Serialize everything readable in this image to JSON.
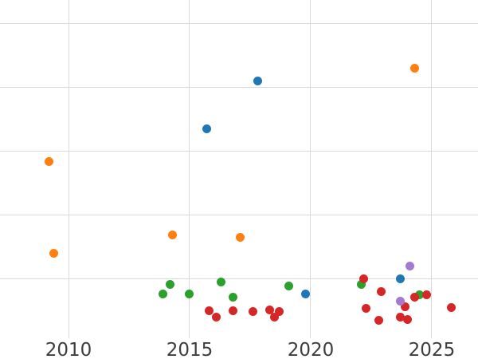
{
  "colors": {
    "background": "#ffffff",
    "gridline": "#d9d9d9",
    "tick_label": "#3d3d3d"
  },
  "chart_data": {
    "type": "scatter",
    "title": "",
    "xlabel": "",
    "ylabel": "",
    "grid": true,
    "legend": "none",
    "x_tick_labels": [
      "2010",
      "2015",
      "2020",
      "2025"
    ],
    "x_tick_years": [
      2010,
      2015,
      2020,
      2025
    ],
    "x_range": [
      2007.17,
      2026.91
    ],
    "y_range": [
      0,
      5.36
    ],
    "y_gridline_levels": [
      1,
      2,
      3,
      4,
      5
    ],
    "y_tick_labels_visible": false,
    "series": [
      {
        "name": "blue",
        "color": "#1f77b4",
        "points": [
          [
            2015.7,
            3.35
          ],
          [
            2017.8,
            4.1
          ],
          [
            2019.8,
            0.76
          ],
          [
            2023.7,
            0.99
          ]
        ]
      },
      {
        "name": "orange",
        "color": "#ff7f0e",
        "points": [
          [
            2009.2,
            2.83
          ],
          [
            2009.4,
            1.4
          ],
          [
            2014.3,
            1.68
          ],
          [
            2017.1,
            1.64
          ],
          [
            2024.3,
            4.29
          ]
        ]
      },
      {
        "name": "green",
        "color": "#2ca02c",
        "points": [
          [
            2013.9,
            0.76
          ],
          [
            2014.2,
            0.91
          ],
          [
            2015.0,
            0.76
          ],
          [
            2016.3,
            0.94
          ],
          [
            2016.8,
            0.71
          ],
          [
            2019.1,
            0.88
          ],
          [
            2022.1,
            0.91
          ],
          [
            2024.5,
            0.75
          ]
        ]
      },
      {
        "name": "red",
        "color": "#d62728",
        "points": [
          [
            2015.8,
            0.49
          ],
          [
            2016.1,
            0.39
          ],
          [
            2016.8,
            0.5
          ],
          [
            2017.6,
            0.48
          ],
          [
            2018.3,
            0.51
          ],
          [
            2018.5,
            0.4
          ],
          [
            2018.7,
            0.48
          ],
          [
            2022.2,
            1.0
          ],
          [
            2022.3,
            0.53
          ],
          [
            2022.8,
            0.34
          ],
          [
            2022.9,
            0.79
          ],
          [
            2023.7,
            0.4
          ],
          [
            2023.9,
            0.56
          ],
          [
            2024.0,
            0.36
          ],
          [
            2024.3,
            0.71
          ],
          [
            2024.8,
            0.75
          ],
          [
            2025.8,
            0.55
          ]
        ]
      },
      {
        "name": "purple",
        "color": "#a47ad1",
        "points": [
          [
            2023.7,
            0.64
          ],
          [
            2024.1,
            1.2
          ]
        ]
      }
    ]
  }
}
